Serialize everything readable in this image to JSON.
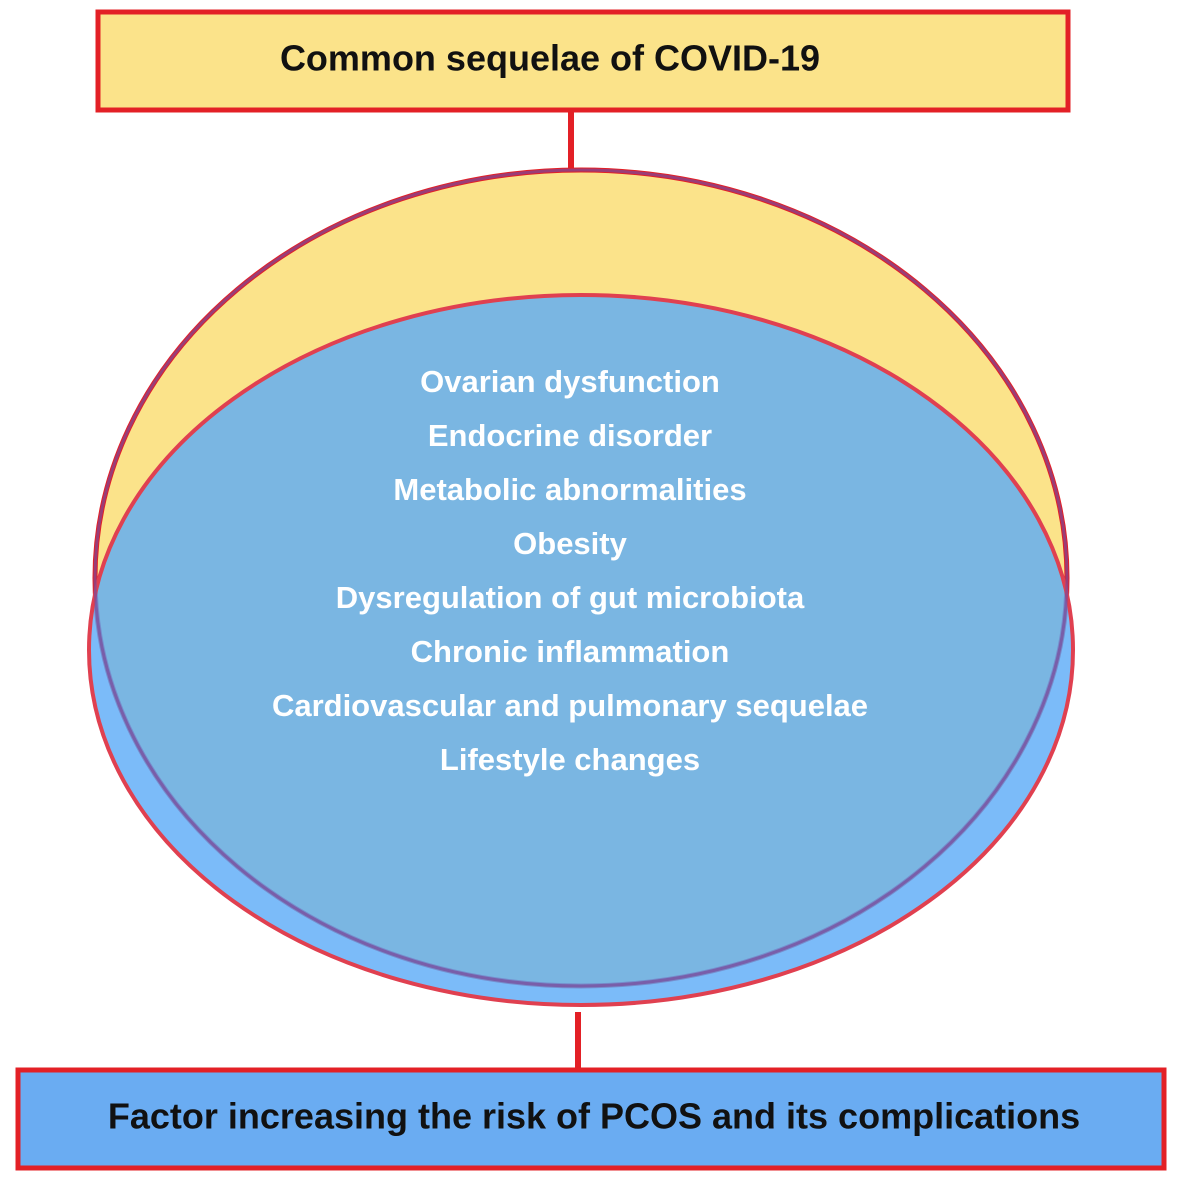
{
  "header": {
    "title": "Common sequelae of COVID-19"
  },
  "items": [
    "Ovarian dysfunction",
    "Endocrine disorder",
    "Metabolic abnormalities",
    "Obesity",
    "Dysregulation of gut microbiota",
    "Chronic inflammation",
    "Cardiovascular and pulmonary sequelae",
    "Lifestyle changes"
  ],
  "footer": {
    "title": "Factor increasing the risk of PCOS and  its complications"
  }
}
